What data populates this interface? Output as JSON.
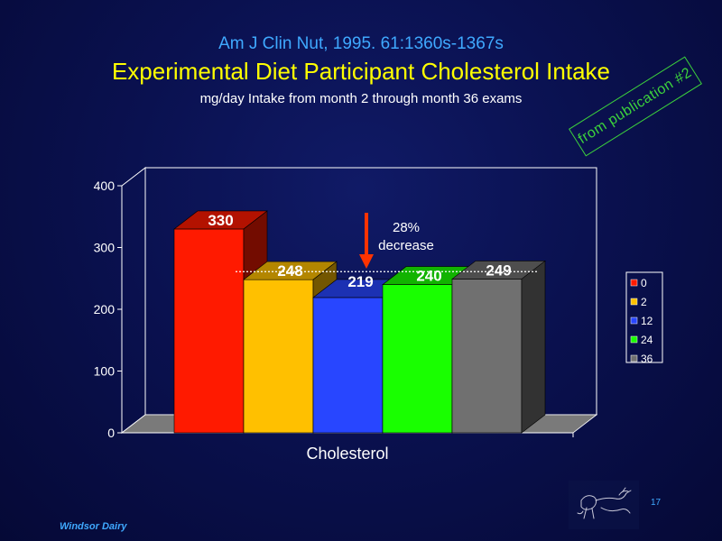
{
  "slide": {
    "citation": "Am J Clin Nut, 1995. 61:1360s-1367s",
    "title": "Experimental Diet Participant Cholesterol Intake",
    "subtitle": "mg/day Intake from month 2 through month 36 exams",
    "stamp": "from publication #2",
    "footer": "Windsor Dairy",
    "page_number": "17",
    "logo_icon": "cow-sketch-icon"
  },
  "chart_data": {
    "type": "bar",
    "categories": [
      "Cholesterol"
    ],
    "series": [
      {
        "name": "0",
        "values": [
          330
        ],
        "color": "#ff1a00",
        "label": "330"
      },
      {
        "name": "2",
        "values": [
          248
        ],
        "color": "#ffc000",
        "label": "248"
      },
      {
        "name": "12",
        "values": [
          219
        ],
        "color": "#2846ff",
        "label": "219"
      },
      {
        "name": "24",
        "values": [
          240
        ],
        "color": "#19ff00",
        "label": "240"
      },
      {
        "name": "36",
        "values": [
          249
        ],
        "color": "#707070",
        "label": "249"
      }
    ],
    "ylim": [
      0,
      400
    ],
    "yticks": [
      0,
      100,
      200,
      300,
      400
    ],
    "xlabel": "Cholesterol",
    "legend": "right",
    "annotation": {
      "line1": "28%",
      "line2": "decrease",
      "reference_value": 261,
      "arrow_color": "#ff3300"
    }
  }
}
